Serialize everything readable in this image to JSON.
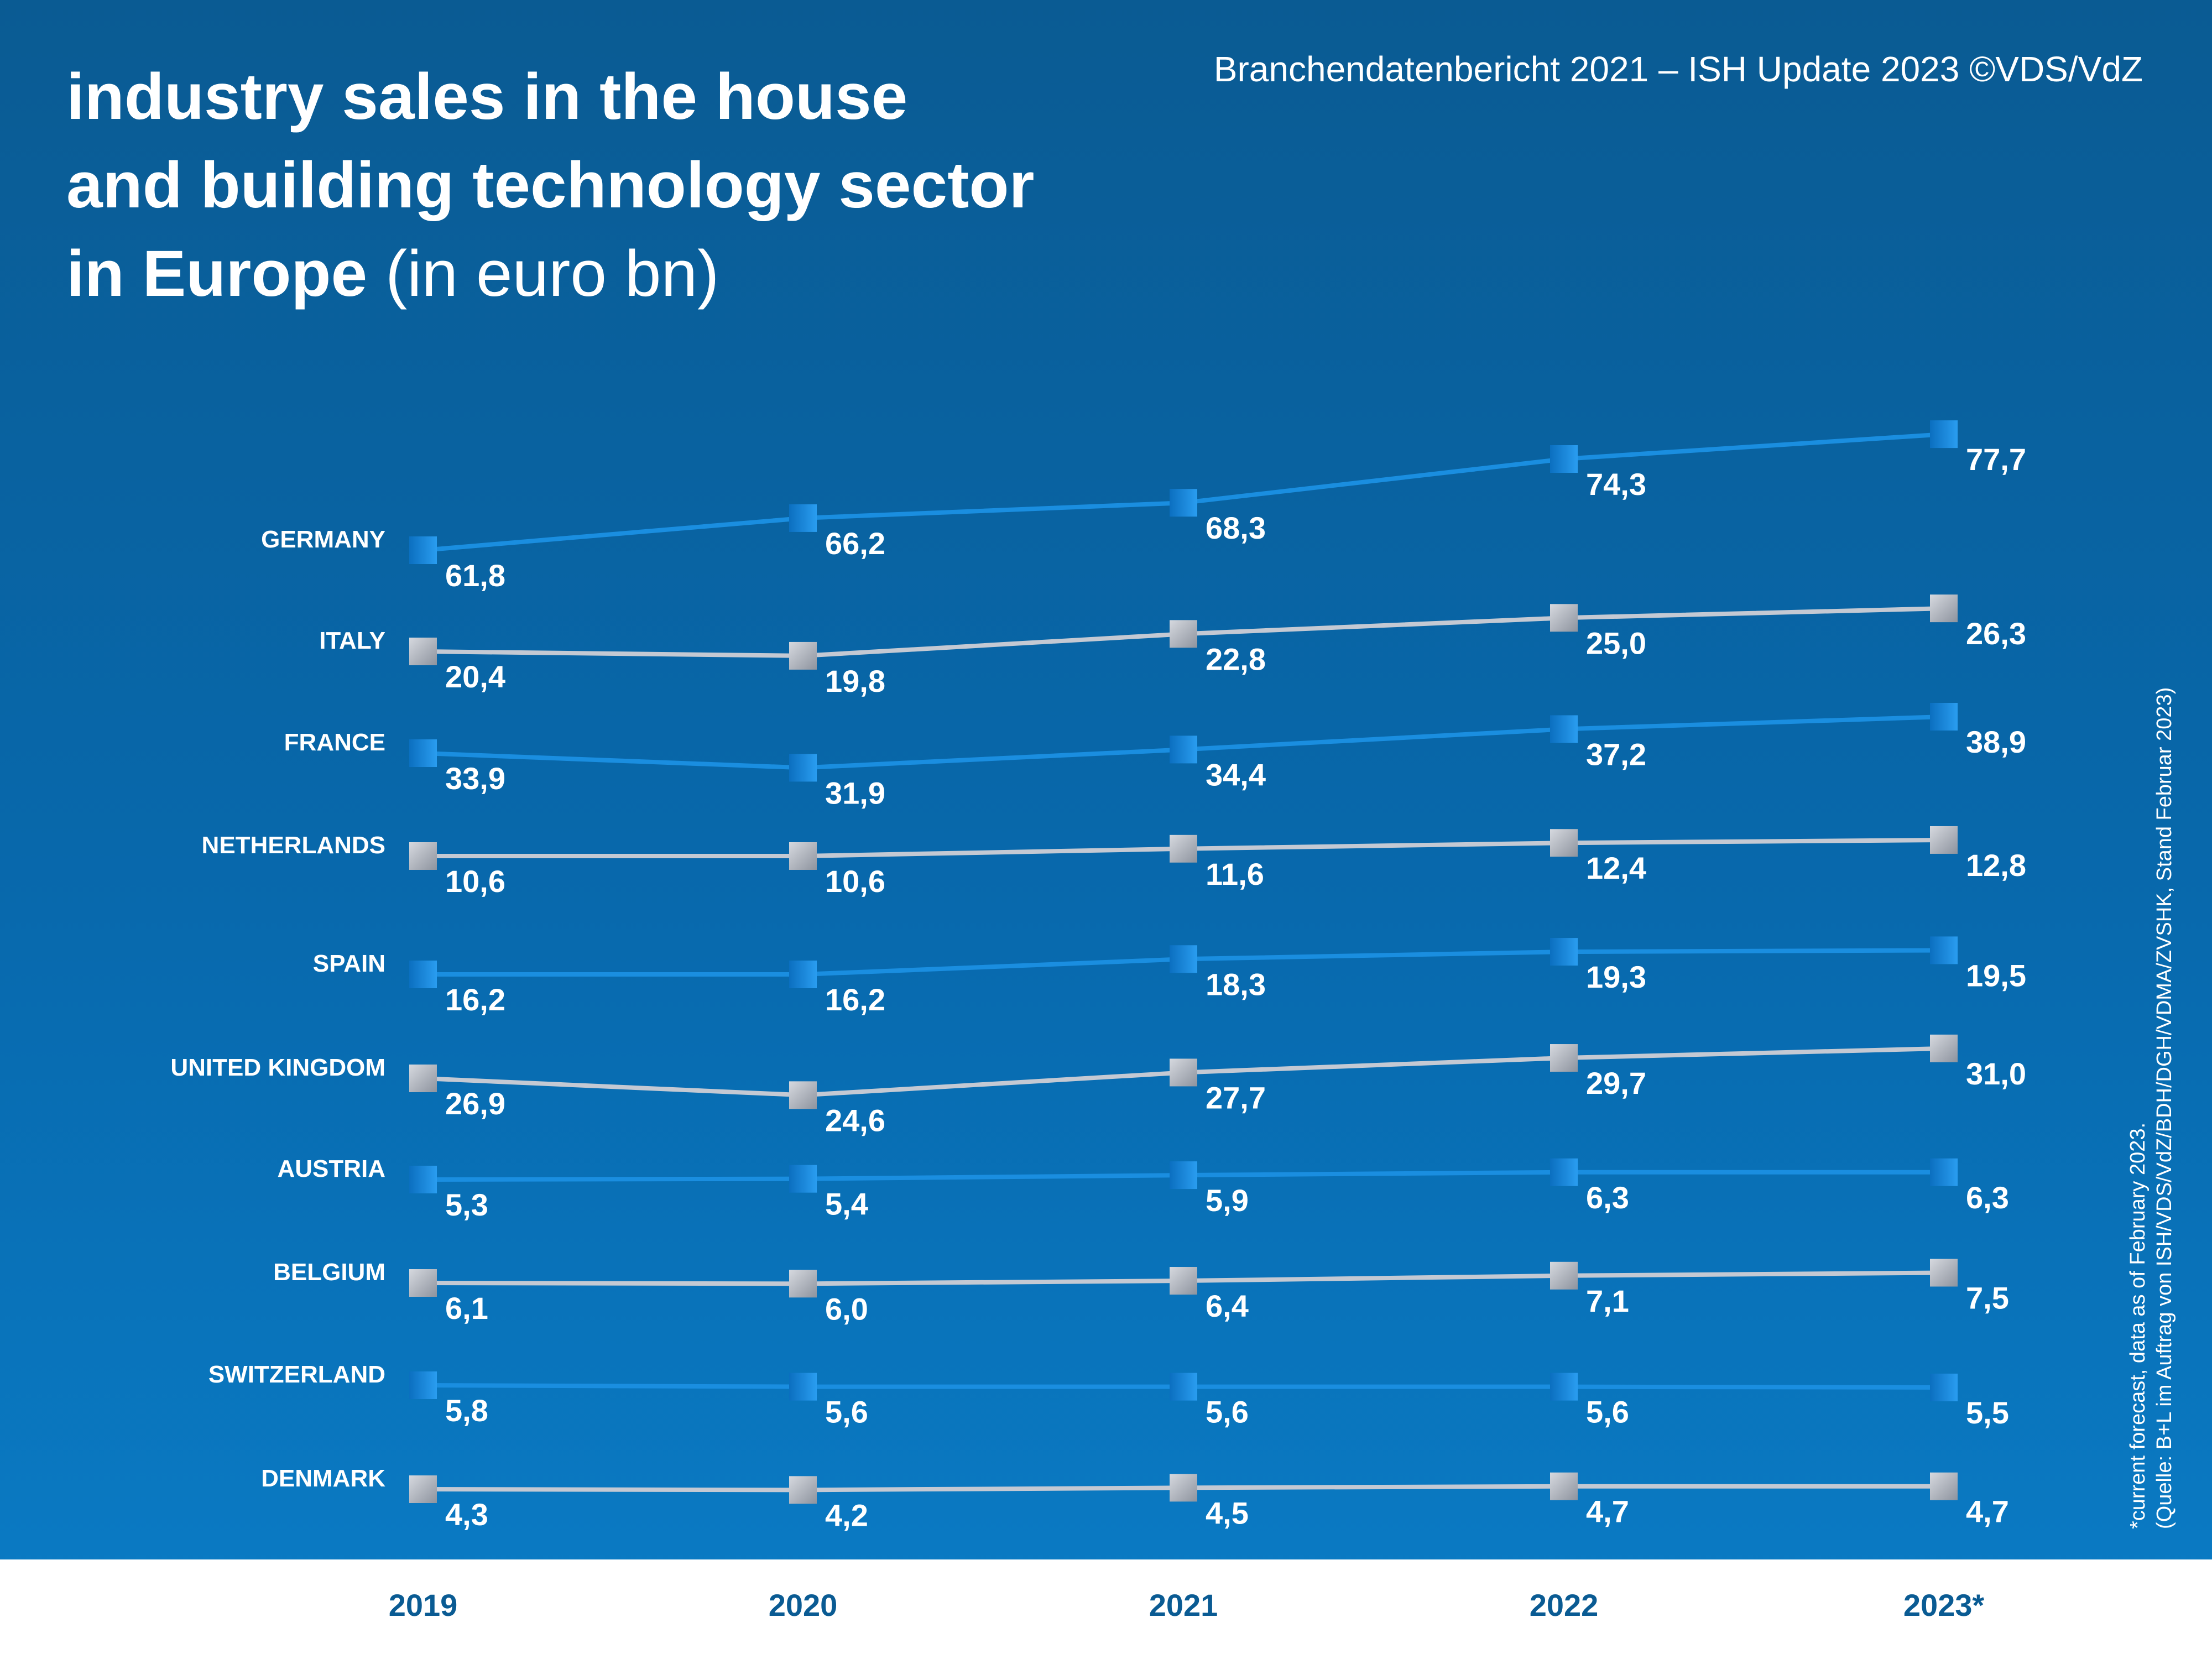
{
  "title": {
    "main_line1": "industry sales in the house",
    "main_line2": "and building technology sector",
    "main_line3": "in Europe",
    "unit": "(in euro bn)"
  },
  "source_line": "Branchendatenbericht 2021 – ISH Update 2023 ©VDS/VdZ",
  "footnote": {
    "line1": "*current forecast, data as of February 2023.",
    "line2": "(Quelle: B+L im Auftrag von ISH/VDS/VdZ/BDH/DGH/VDMA/ZVSHK, Stand Februar 2023)"
  },
  "colors": {
    "background_top": "#0a5b93",
    "background_bottom": "#0a7cc6",
    "blue_series": "#1a8ee0",
    "grey_series": "#c4c9d3",
    "year_label": "#0a5b93",
    "text": "#ffffff"
  },
  "chart_data": {
    "type": "line",
    "categories": [
      "2019",
      "2020",
      "2021",
      "2022",
      "2023*"
    ],
    "unit": "euro bn",
    "decimal_separator": ",",
    "series": [
      {
        "name": "GERMANY",
        "color": "blue",
        "values": [
          61.8,
          66.2,
          68.3,
          74.3,
          77.7
        ]
      },
      {
        "name": "ITALY",
        "color": "grey",
        "values": [
          20.4,
          19.8,
          22.8,
          25.0,
          26.3
        ]
      },
      {
        "name": "FRANCE",
        "color": "blue",
        "values": [
          33.9,
          31.9,
          34.4,
          37.2,
          38.9
        ]
      },
      {
        "name": "NETHERLANDS",
        "color": "grey",
        "values": [
          10.6,
          10.6,
          11.6,
          12.4,
          12.8
        ]
      },
      {
        "name": "SPAIN",
        "color": "blue",
        "values": [
          16.2,
          16.2,
          18.3,
          19.3,
          19.5
        ]
      },
      {
        "name": "UNITED KINGDOM",
        "color": "grey",
        "values": [
          26.9,
          24.6,
          27.7,
          29.7,
          31.0
        ]
      },
      {
        "name": "AUSTRIA",
        "color": "blue",
        "values": [
          5.3,
          5.4,
          5.9,
          6.3,
          6.3
        ]
      },
      {
        "name": "BELGIUM",
        "color": "grey",
        "values": [
          6.1,
          6.0,
          6.4,
          7.1,
          7.5
        ]
      },
      {
        "name": "SWITZERLAND",
        "color": "blue",
        "values": [
          5.8,
          5.6,
          5.6,
          5.6,
          5.5
        ]
      },
      {
        "name": "DENMARK",
        "color": "grey",
        "values": [
          4.3,
          4.2,
          4.5,
          4.7,
          4.7
        ]
      }
    ]
  }
}
